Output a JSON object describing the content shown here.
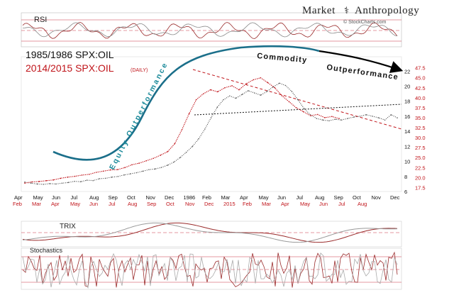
{
  "brand": {
    "name": "Market Anthropology",
    "left": "Market",
    "right": "Anthropology",
    "logo_glyph": "⚕",
    "source": "© StockCharts.com"
  },
  "chart_data": {
    "type": "line",
    "title": "1985/1986 SPX:OIL vs 2014/2015 SPX:OIL (DAILY)",
    "legend": [
      {
        "name": "1985/1986 SPX:OIL",
        "color": "#000000"
      },
      {
        "name": "2014/2015 SPX:OIL",
        "suffix": "(DAILY)",
        "color": "#c0141a"
      }
    ],
    "x_top_labels": [
      "Apr",
      "May",
      "Jun",
      "Jul",
      "Aug",
      "Sep",
      "Oct",
      "Nov",
      "Dec",
      "1986",
      "Feb",
      "Mar",
      "Apr",
      "May",
      "Jun",
      "Jul",
      "Aug",
      "Sep",
      "Oct",
      "Nov",
      "Dec"
    ],
    "x_bottom_labels": [
      "Feb",
      "Mar",
      "Apr",
      "May",
      "Jun",
      "Jul",
      "Aug",
      "Sep",
      "Oct",
      "Nov",
      "Dec",
      "2015",
      "Feb",
      "Mar",
      "Apr",
      "May",
      "Jun",
      "Jul",
      "Aug"
    ],
    "y_right_black": {
      "ticks": [
        6,
        8,
        10,
        12,
        14,
        16,
        18,
        20,
        22
      ],
      "range": [
        6,
        22.5
      ]
    },
    "y_right_red": {
      "ticks": [
        17.5,
        20.0,
        22.5,
        25.0,
        27.5,
        30.0,
        32.5,
        35.0,
        37.5,
        40.0,
        42.5,
        45.0,
        47.5
      ],
      "range": [
        16.5,
        48.5
      ]
    },
    "series": [
      {
        "name": "1985/1986 SPX:OIL",
        "axis": "black",
        "values": [
          7.25,
          7.1,
          7.0,
          6.95,
          7.05,
          7.0,
          7.1,
          7.2,
          7.35,
          7.3,
          7.5,
          7.45,
          7.7,
          7.75,
          7.9,
          8.0,
          8.2,
          8.35,
          8.5,
          8.7,
          8.9,
          9.0,
          9.2,
          9.5,
          9.9,
          10.5,
          11.2,
          12.0,
          13.0,
          14.3,
          15.8,
          17.2,
          18.2,
          18.7,
          18.4,
          18.9,
          19.4,
          19.1,
          18.8,
          19.3,
          19.9,
          20.4,
          20.1,
          19.3,
          18.2,
          17.0,
          16.2,
          15.7,
          15.5,
          15.4,
          15.6,
          15.5,
          15.7,
          15.9,
          16.0,
          16.2,
          16.0,
          15.8,
          15.5,
          16.2,
          15.8
        ]
      },
      {
        "name": "2014/2015 SPX:OIL",
        "axis": "red",
        "values": [
          18.6,
          18.9,
          19.0,
          19.2,
          19.4,
          19.8,
          20.1,
          20.3,
          20.6,
          20.8,
          21.3,
          21.6,
          21.9,
          22.0,
          22.5,
          23.2,
          23.6,
          24.2,
          24.8,
          25.6,
          26.5,
          28.5,
          32.0,
          36.0,
          39.5,
          41.0,
          42.0,
          41.5,
          42.5,
          43.0,
          42.0,
          43.5,
          44.5,
          45.0,
          43.8,
          42.5,
          40.5,
          39.0,
          37.5,
          36.5,
          35.5,
          35.8,
          35.0,
          35.3,
          34.8
        ]
      }
    ],
    "annotations": [
      {
        "text": "Equity  Outperformance",
        "color": "#1b8a9a"
      },
      {
        "text": "Commodity",
        "color": "#111111"
      },
      {
        "text": "Outperformance",
        "color": "#111111"
      }
    ],
    "panels": [
      {
        "name": "RSI",
        "label": "RSI"
      },
      {
        "name": "TRIX",
        "label": "TRIX"
      },
      {
        "name": "Stochastics",
        "label": "Stochastics"
      }
    ]
  }
}
